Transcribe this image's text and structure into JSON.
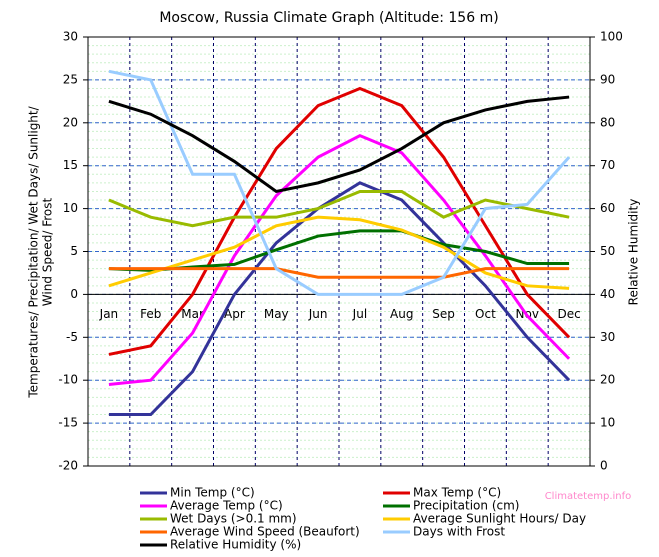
{
  "chart_data": {
    "type": "line",
    "title": "Moscow, Russia Climate Graph (Altitude: 156 m)",
    "y_label": [
      "Temperatures/ Precipitation/ Wet Days/ Sunlight/",
      "Wind Speed/ Frost"
    ],
    "y2_label": "Relative Humidity",
    "watermark": "Climatetemp.info",
    "categories": [
      "Jan",
      "Feb",
      "Mar",
      "Apr",
      "May",
      "Jun",
      "Jul",
      "Aug",
      "Sep",
      "Oct",
      "Nov",
      "Dec"
    ],
    "series": [
      {
        "name": "Min Temp (°C)",
        "color": "#333399",
        "values": [
          -14,
          -14,
          -9,
          0,
          6,
          10,
          13,
          11,
          6,
          1,
          -5,
          -10
        ]
      },
      {
        "name": "Max Temp (°C)",
        "color": "#e00000",
        "values": [
          -7,
          -6,
          0,
          9,
          17,
          22,
          24,
          22,
          16,
          8,
          0,
          -5
        ]
      },
      {
        "name": "Average Temp (°C)",
        "color": "#ff00ff",
        "values": [
          -10.5,
          -10,
          -4.5,
          4.5,
          11.5,
          16,
          18.5,
          16.5,
          11,
          4.5,
          -2.5,
          -7.5
        ]
      },
      {
        "name": "Precipitation (cm)",
        "color": "#007000",
        "values": [
          3,
          2.8,
          3.2,
          3.5,
          5.2,
          6.8,
          7.4,
          7.4,
          5.8,
          5,
          3.6,
          3.6
        ]
      },
      {
        "name": "Wet Days (>0.1 mm)",
        "color": "#99bb00",
        "values": [
          11,
          9,
          8,
          9,
          9,
          10,
          12,
          12,
          9,
          11,
          10,
          9
        ]
      },
      {
        "name": "Average Sunlight Hours/ Day",
        "color": "#ffcc00",
        "values": [
          1,
          2.5,
          4,
          5.5,
          8,
          9,
          8.7,
          7.5,
          5.5,
          2.5,
          1,
          0.7
        ]
      },
      {
        "name": "Average Wind Speed (Beaufort)",
        "color": "#ff6600",
        "values": [
          3,
          3,
          3,
          3,
          3,
          2,
          2,
          2,
          2,
          3,
          3,
          3
        ]
      },
      {
        "name": "Days with Frost",
        "color": "#99ccff",
        "values": [
          26,
          25,
          14,
          14,
          3,
          0,
          0,
          0,
          2,
          10,
          10.5,
          16
        ]
      },
      {
        "name": "Relative Humidity (%)",
        "color": "#000000",
        "axis": "y2",
        "values": [
          85,
          82,
          77,
          71,
          64,
          66,
          69,
          74,
          80,
          83,
          85,
          86
        ]
      }
    ],
    "ylim": [
      -20,
      30
    ],
    "yticks": [
      -20,
      -15,
      -10,
      -5,
      0,
      5,
      10,
      15,
      20,
      25,
      30
    ],
    "y2lim": [
      0,
      100
    ],
    "y2ticks": [
      0,
      10,
      20,
      30,
      40,
      50,
      60,
      70,
      80,
      90,
      100
    ],
    "grid": true
  }
}
